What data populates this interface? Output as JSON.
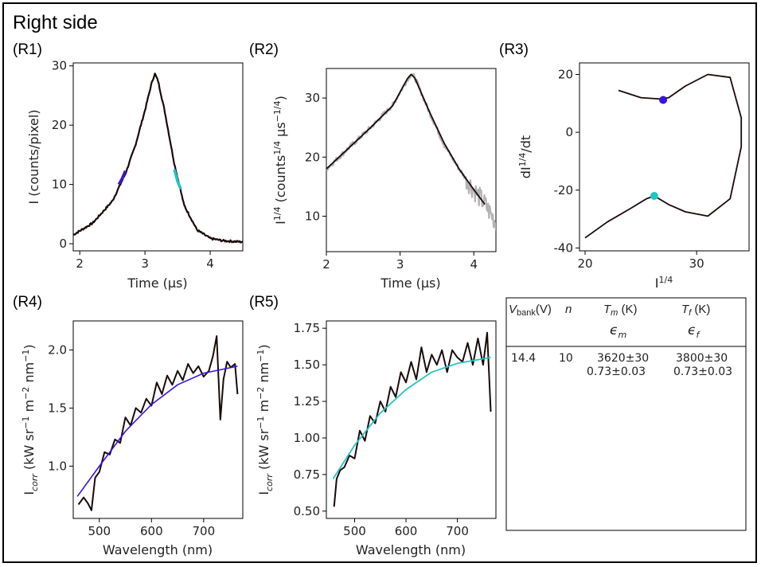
{
  "figure": {
    "title": "Right side",
    "colors": {
      "trace": "#1a0a0a",
      "raw": "#b3b3b3",
      "blue": "#3a14dc",
      "cyan": "#22c4c4"
    }
  },
  "chart_data": [
    {
      "id": "R1",
      "label": "(R1)",
      "type": "line",
      "xlabel": "Time (μs)",
      "ylabel": "I (counts/pixel)",
      "xlim": [
        1.9,
        4.5
      ],
      "ylim": [
        -1.2,
        30.5
      ],
      "xticks": [
        2,
        3,
        4
      ],
      "yticks": [
        0,
        10,
        20,
        30
      ],
      "series": [
        {
          "name": "intensity",
          "x": [
            1.9,
            2.2,
            2.5,
            2.7,
            2.85,
            3.0,
            3.1,
            3.15,
            3.2,
            3.3,
            3.45,
            3.6,
            3.8,
            4.0,
            4.2,
            4.5
          ],
          "y": [
            1.5,
            3.5,
            7.2,
            11.8,
            16.5,
            22.5,
            27.0,
            28.7,
            27.5,
            22.5,
            13.5,
            6.5,
            2.3,
            0.9,
            0.5,
            0.3
          ]
        },
        {
          "name": "fit-region-blue",
          "x": [
            2.6,
            2.65,
            2.7
          ],
          "y": [
            10.0,
            11.0,
            12.3
          ]
        },
        {
          "name": "fit-region-cyan",
          "x": [
            3.45,
            3.5,
            3.55
          ],
          "y": [
            12.5,
            10.5,
            9.2
          ]
        }
      ]
    },
    {
      "id": "R2",
      "label": "(R2)",
      "type": "line",
      "xlabel": "Time (μs)",
      "ylabel": "I^1/4 (counts^1/4 μs^−1/4)",
      "xlim": [
        2.0,
        4.3
      ],
      "ylim": [
        4.0,
        35.0
      ],
      "xticks": [
        2,
        3,
        4
      ],
      "yticks": [
        10,
        20,
        30
      ],
      "series": [
        {
          "name": "measured",
          "x": [
            2.0,
            2.3,
            2.6,
            2.9,
            3.1,
            3.15,
            3.2,
            3.4,
            3.6,
            3.8,
            4.0,
            4.15,
            4.3
          ],
          "y": [
            18.0,
            21.5,
            25.0,
            28.8,
            33.2,
            34.0,
            33.5,
            27.5,
            22.0,
            18.0,
            14.5,
            12.0,
            9.0
          ]
        },
        {
          "name": "smoothed",
          "x": [
            2.0,
            2.3,
            2.6,
            2.9,
            3.1,
            3.15,
            3.2,
            3.4,
            3.6,
            3.8,
            4.0,
            4.15
          ],
          "y": [
            18.0,
            21.5,
            25.0,
            28.7,
            33.3,
            34.0,
            33.4,
            27.6,
            22.3,
            18.0,
            14.5,
            12.0
          ]
        }
      ]
    },
    {
      "id": "R3",
      "label": "(R3)",
      "type": "line",
      "xlabel": "I^1/4",
      "ylabel": "dI^1/4/dt",
      "xlim": [
        19.5,
        34.7
      ],
      "ylim": [
        -41.0,
        24.0
      ],
      "xticks": [
        20,
        30
      ],
      "yticks": [
        -40,
        -20,
        0,
        20
      ],
      "series": [
        {
          "name": "trajectory",
          "x": [
            20.0,
            22.0,
            24.0,
            25.5,
            26.2,
            27.5,
            29.0,
            31.0,
            33.0,
            34.0,
            34.0,
            33.0,
            31.0,
            29.0,
            27.5,
            26.8,
            25.0,
            23.0
          ],
          "y": [
            -36.5,
            -31.0,
            -26.5,
            -23.0,
            -22.0,
            -25.0,
            -27.5,
            -29.0,
            -23.0,
            -5.0,
            5.0,
            19.0,
            20.0,
            16.0,
            12.0,
            11.5,
            12.0,
            14.5
          ]
        },
        {
          "name": "marker-blue",
          "x": [
            27.0
          ],
          "y": [
            11.2
          ]
        },
        {
          "name": "marker-cyan",
          "x": [
            26.2
          ],
          "y": [
            -22.0
          ]
        }
      ]
    },
    {
      "id": "R4",
      "label": "(R4)",
      "type": "line",
      "xlabel": "Wavelength (nm)",
      "ylabel": "I_corr (kW sr^−1 m^−2 nm^−1)",
      "xlim": [
        450,
        775
      ],
      "ylim": [
        0.55,
        2.25
      ],
      "xticks": [
        500,
        600,
        700
      ],
      "yticks": [
        1.0,
        1.5,
        2.0
      ],
      "series": [
        {
          "name": "spectrum",
          "x": [
            460,
            470,
            478,
            485,
            492,
            500,
            510,
            520,
            530,
            540,
            550,
            560,
            570,
            580,
            590,
            600,
            610,
            620,
            630,
            640,
            650,
            660,
            670,
            680,
            690,
            700,
            710,
            718,
            725,
            732,
            738,
            745,
            752,
            760,
            765
          ],
          "y": [
            0.67,
            0.73,
            0.68,
            0.62,
            0.9,
            0.95,
            1.12,
            1.1,
            1.23,
            1.2,
            1.42,
            1.35,
            1.5,
            1.46,
            1.58,
            1.52,
            1.72,
            1.62,
            1.78,
            1.7,
            1.82,
            1.74,
            1.88,
            1.8,
            1.86,
            1.77,
            1.82,
            1.95,
            2.12,
            1.4,
            1.75,
            1.9,
            1.85,
            1.88,
            1.62
          ]
        },
        {
          "name": "planck-fit",
          "x": [
            458,
            500,
            550,
            600,
            650,
            700,
            765
          ],
          "y": [
            0.74,
            1.0,
            1.3,
            1.53,
            1.7,
            1.8,
            1.86
          ]
        }
      ]
    },
    {
      "id": "R5",
      "label": "(R5)",
      "type": "line",
      "xlabel": "Wavelength (nm)",
      "ylabel": "I_corr (kW sr^−1 m^−2 nm^−1)",
      "xlim": [
        445,
        775
      ],
      "ylim": [
        0.45,
        1.8
      ],
      "xticks": [
        500,
        600,
        700
      ],
      "yticks": [
        0.5,
        0.75,
        1.0,
        1.25,
        1.5,
        1.75
      ],
      "series": [
        {
          "name": "spectrum",
          "x": [
            460,
            465,
            472,
            480,
            490,
            500,
            510,
            520,
            530,
            540,
            550,
            560,
            570,
            580,
            590,
            600,
            610,
            620,
            630,
            640,
            650,
            660,
            670,
            680,
            690,
            700,
            710,
            720,
            730,
            740,
            750,
            758,
            765
          ],
          "y": [
            0.53,
            0.72,
            0.78,
            0.8,
            0.88,
            0.86,
            1.05,
            0.98,
            1.15,
            1.1,
            1.25,
            1.18,
            1.35,
            1.28,
            1.45,
            1.38,
            1.52,
            1.4,
            1.62,
            1.45,
            1.57,
            1.5,
            1.6,
            1.45,
            1.6,
            1.55,
            1.52,
            1.65,
            1.5,
            1.68,
            1.5,
            1.72,
            1.18
          ]
        },
        {
          "name": "planck-fit",
          "x": [
            458,
            500,
            550,
            600,
            650,
            700,
            765
          ],
          "y": [
            0.72,
            0.95,
            1.17,
            1.33,
            1.45,
            1.51,
            1.55
          ]
        }
      ]
    }
  ],
  "table": {
    "headers": {
      "v": "V",
      "v_sub": "bank",
      "v_unit": "(V)",
      "n": "n",
      "tm": "T",
      "tm_sub": "m",
      "tm_unit": " (K)",
      "tf": "T",
      "tf_sub": "f",
      "tf_unit": " (K)",
      "em": "ϵ",
      "em_sub": "m",
      "ef": "ϵ",
      "ef_sub": "f"
    },
    "rows": [
      {
        "vbank": "14.4",
        "n": "10",
        "tm": "3620±30",
        "em": "0.73±0.03",
        "tf": "3800±30",
        "ef": "0.73±0.03"
      }
    ]
  }
}
